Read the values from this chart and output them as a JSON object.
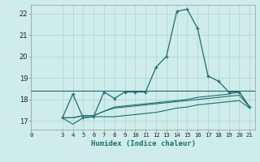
{
  "xlabel": "Humidex (Indice chaleur)",
  "bg_color": "#ceecea",
  "grid_color": "#b0d0cc",
  "line_color": "#1e6e6e",
  "xlim": [
    0,
    21.5
  ],
  "ylim": [
    16.6,
    22.4
  ],
  "yticks": [
    17,
    18,
    19,
    20,
    21,
    22
  ],
  "xticks": [
    0,
    3,
    4,
    5,
    6,
    7,
    8,
    9,
    10,
    11,
    12,
    13,
    14,
    15,
    16,
    17,
    18,
    19,
    20,
    21
  ],
  "flat_line_x": [
    0,
    21.5
  ],
  "flat_line_y": [
    18.4,
    18.4
  ],
  "lower_x": [
    3,
    4,
    5,
    6,
    7,
    8,
    9,
    10,
    11,
    12,
    13,
    14,
    15,
    16,
    17,
    18,
    19,
    20,
    21
  ],
  "lower_y": [
    17.15,
    16.85,
    17.15,
    17.2,
    17.2,
    17.2,
    17.25,
    17.3,
    17.35,
    17.4,
    17.5,
    17.6,
    17.65,
    17.75,
    17.8,
    17.85,
    17.9,
    17.95,
    17.6
  ],
  "mid_x": [
    3,
    4,
    5,
    6,
    7,
    8,
    9,
    10,
    11,
    12,
    13,
    14,
    15,
    16,
    17,
    18,
    19,
    20,
    21
  ],
  "mid_y": [
    17.15,
    17.15,
    17.25,
    17.25,
    17.45,
    17.6,
    17.65,
    17.7,
    17.75,
    17.8,
    17.85,
    17.9,
    17.95,
    18.0,
    18.05,
    18.1,
    18.15,
    18.2,
    17.65
  ],
  "upper_x": [
    3,
    4,
    5,
    6,
    7,
    8,
    9,
    10,
    11,
    12,
    13,
    14,
    15,
    16,
    17,
    18,
    19,
    20,
    21
  ],
  "upper_y": [
    17.15,
    17.15,
    17.25,
    17.25,
    17.45,
    17.65,
    17.7,
    17.75,
    17.8,
    17.85,
    17.9,
    17.95,
    18.0,
    18.1,
    18.15,
    18.2,
    18.25,
    18.35,
    17.65
  ],
  "main_x": [
    3,
    4,
    5,
    6,
    7,
    8,
    9,
    10,
    11,
    12,
    13,
    14,
    15,
    16,
    17,
    18,
    19,
    20,
    21
  ],
  "main_y": [
    17.15,
    18.25,
    17.15,
    17.2,
    18.35,
    18.05,
    18.35,
    18.35,
    18.35,
    19.5,
    20.0,
    22.1,
    22.2,
    21.3,
    19.1,
    18.85,
    18.35,
    18.35,
    17.65
  ]
}
